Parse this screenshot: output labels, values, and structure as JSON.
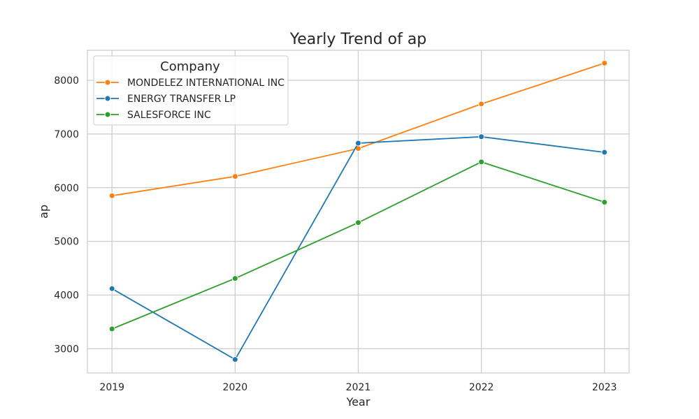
{
  "chart_data": {
    "type": "line",
    "title": "Yearly Trend of ap",
    "xlabel": "Year",
    "ylabel": "ap",
    "x": [
      "2019",
      "2020",
      "2021",
      "2022",
      "2023"
    ],
    "xlim": [
      2018.8,
      2023.2
    ],
    "ylim": [
      2550,
      8560
    ],
    "yticks": [
      3000,
      4000,
      5000,
      6000,
      7000,
      8000
    ],
    "grid": true,
    "legend": {
      "title": "Company",
      "position": "top-left"
    },
    "series": [
      {
        "name": "MONDELEZ INTERNATIONAL INC",
        "color": "#ff7f0e",
        "values": [
          5850,
          6210,
          6730,
          7560,
          8320
        ]
      },
      {
        "name": "ENERGY TRANSFER LP",
        "color": "#1f77b4",
        "values": [
          4120,
          2800,
          6830,
          6950,
          6660
        ]
      },
      {
        "name": "SALESFORCE INC",
        "color": "#2ca02c",
        "values": [
          3370,
          4310,
          5350,
          6480,
          5730
        ]
      }
    ]
  }
}
